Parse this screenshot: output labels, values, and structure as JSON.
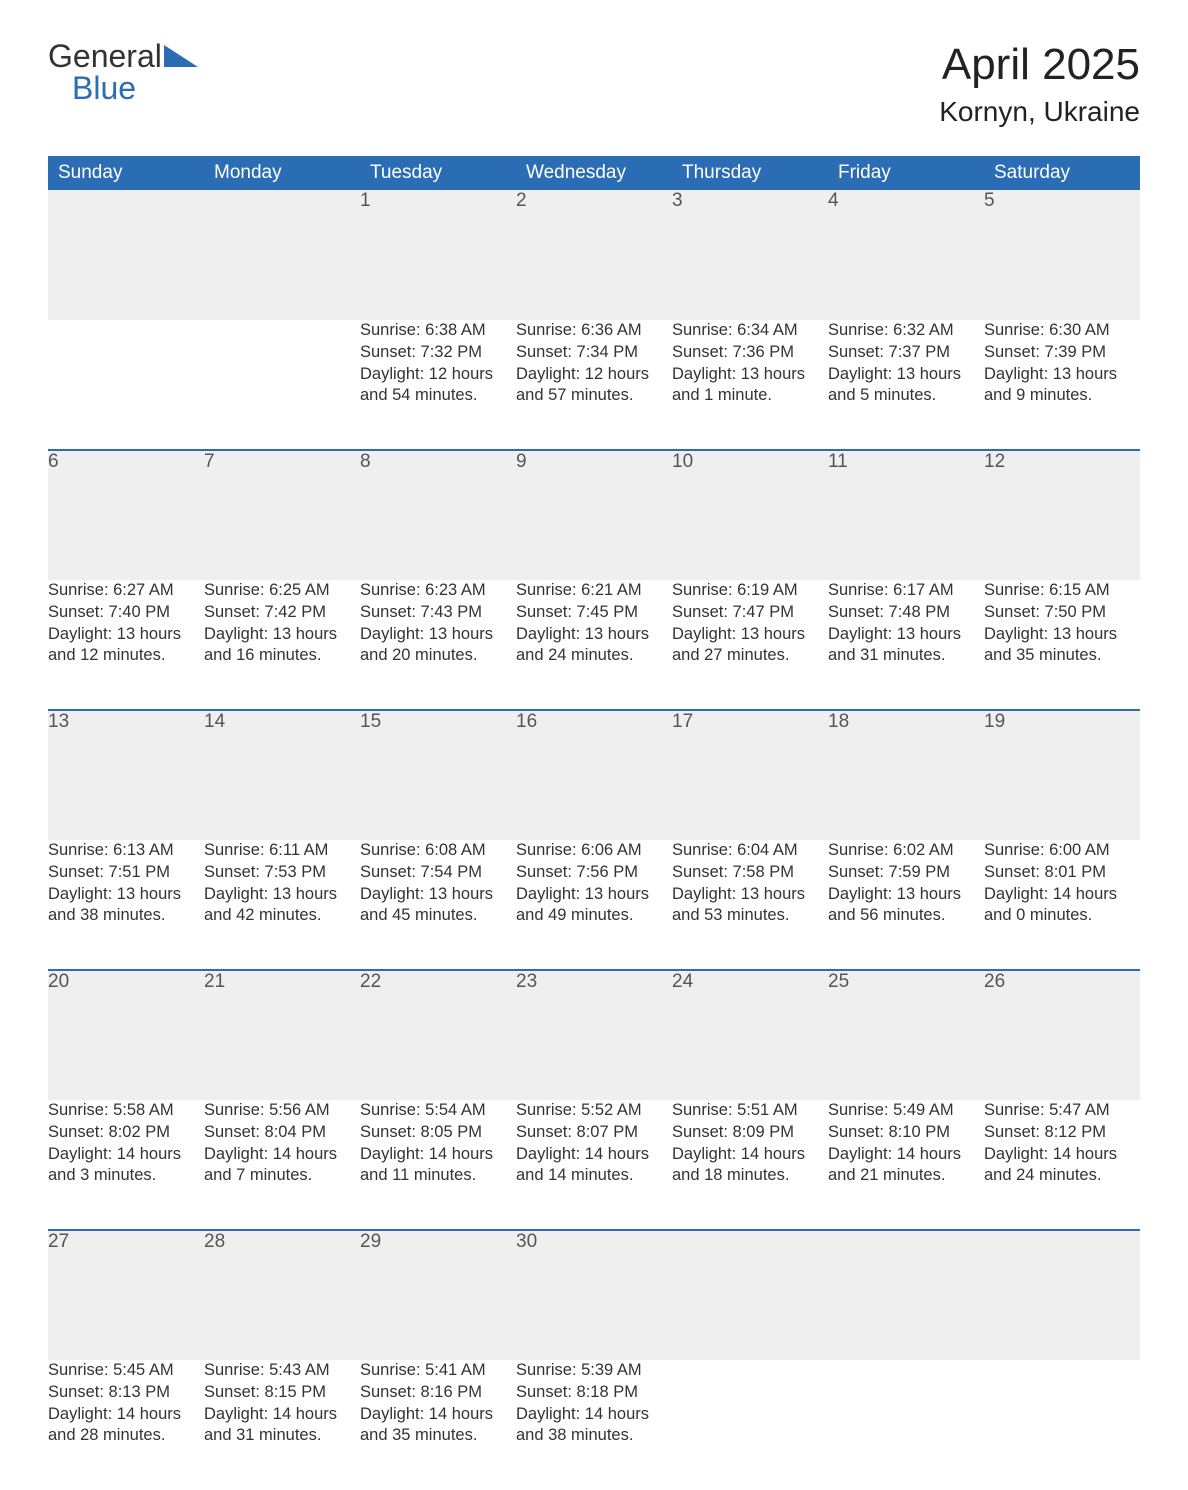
{
  "brand": {
    "line1": "General",
    "line2": "Blue"
  },
  "title": "April 2025",
  "location": "Kornyn, Ukraine",
  "weekday_headers": [
    "Sunday",
    "Monday",
    "Tuesday",
    "Wednesday",
    "Thursday",
    "Friday",
    "Saturday"
  ],
  "colors": {
    "header_bg": "#2a6db5",
    "header_text": "#ffffff",
    "daynum_bg": "#efefef",
    "row_border": "#2a6db5",
    "text": "#333333",
    "logo_accent": "#2a6db5",
    "background": "#ffffff"
  },
  "typography": {
    "month_title_fontsize": 44,
    "location_fontsize": 28,
    "header_fontsize": 19,
    "daynum_fontsize": 19,
    "body_fontsize": 16.5,
    "font_family": "Arial"
  },
  "weeks": [
    {
      "days": [
        {
          "date": "",
          "sunrise": "",
          "sunset": "",
          "daylight": ""
        },
        {
          "date": "",
          "sunrise": "",
          "sunset": "",
          "daylight": ""
        },
        {
          "date": "1",
          "sunrise": "Sunrise: 6:38 AM",
          "sunset": "Sunset: 7:32 PM",
          "daylight": "Daylight: 12 hours and 54 minutes."
        },
        {
          "date": "2",
          "sunrise": "Sunrise: 6:36 AM",
          "sunset": "Sunset: 7:34 PM",
          "daylight": "Daylight: 12 hours and 57 minutes."
        },
        {
          "date": "3",
          "sunrise": "Sunrise: 6:34 AM",
          "sunset": "Sunset: 7:36 PM",
          "daylight": "Daylight: 13 hours and 1 minute."
        },
        {
          "date": "4",
          "sunrise": "Sunrise: 6:32 AM",
          "sunset": "Sunset: 7:37 PM",
          "daylight": "Daylight: 13 hours and 5 minutes."
        },
        {
          "date": "5",
          "sunrise": "Sunrise: 6:30 AM",
          "sunset": "Sunset: 7:39 PM",
          "daylight": "Daylight: 13 hours and 9 minutes."
        }
      ]
    },
    {
      "days": [
        {
          "date": "6",
          "sunrise": "Sunrise: 6:27 AM",
          "sunset": "Sunset: 7:40 PM",
          "daylight": "Daylight: 13 hours and 12 minutes."
        },
        {
          "date": "7",
          "sunrise": "Sunrise: 6:25 AM",
          "sunset": "Sunset: 7:42 PM",
          "daylight": "Daylight: 13 hours and 16 minutes."
        },
        {
          "date": "8",
          "sunrise": "Sunrise: 6:23 AM",
          "sunset": "Sunset: 7:43 PM",
          "daylight": "Daylight: 13 hours and 20 minutes."
        },
        {
          "date": "9",
          "sunrise": "Sunrise: 6:21 AM",
          "sunset": "Sunset: 7:45 PM",
          "daylight": "Daylight: 13 hours and 24 minutes."
        },
        {
          "date": "10",
          "sunrise": "Sunrise: 6:19 AM",
          "sunset": "Sunset: 7:47 PM",
          "daylight": "Daylight: 13 hours and 27 minutes."
        },
        {
          "date": "11",
          "sunrise": "Sunrise: 6:17 AM",
          "sunset": "Sunset: 7:48 PM",
          "daylight": "Daylight: 13 hours and 31 minutes."
        },
        {
          "date": "12",
          "sunrise": "Sunrise: 6:15 AM",
          "sunset": "Sunset: 7:50 PM",
          "daylight": "Daylight: 13 hours and 35 minutes."
        }
      ]
    },
    {
      "days": [
        {
          "date": "13",
          "sunrise": "Sunrise: 6:13 AM",
          "sunset": "Sunset: 7:51 PM",
          "daylight": "Daylight: 13 hours and 38 minutes."
        },
        {
          "date": "14",
          "sunrise": "Sunrise: 6:11 AM",
          "sunset": "Sunset: 7:53 PM",
          "daylight": "Daylight: 13 hours and 42 minutes."
        },
        {
          "date": "15",
          "sunrise": "Sunrise: 6:08 AM",
          "sunset": "Sunset: 7:54 PM",
          "daylight": "Daylight: 13 hours and 45 minutes."
        },
        {
          "date": "16",
          "sunrise": "Sunrise: 6:06 AM",
          "sunset": "Sunset: 7:56 PM",
          "daylight": "Daylight: 13 hours and 49 minutes."
        },
        {
          "date": "17",
          "sunrise": "Sunrise: 6:04 AM",
          "sunset": "Sunset: 7:58 PM",
          "daylight": "Daylight: 13 hours and 53 minutes."
        },
        {
          "date": "18",
          "sunrise": "Sunrise: 6:02 AM",
          "sunset": "Sunset: 7:59 PM",
          "daylight": "Daylight: 13 hours and 56 minutes."
        },
        {
          "date": "19",
          "sunrise": "Sunrise: 6:00 AM",
          "sunset": "Sunset: 8:01 PM",
          "daylight": "Daylight: 14 hours and 0 minutes."
        }
      ]
    },
    {
      "days": [
        {
          "date": "20",
          "sunrise": "Sunrise: 5:58 AM",
          "sunset": "Sunset: 8:02 PM",
          "daylight": "Daylight: 14 hours and 3 minutes."
        },
        {
          "date": "21",
          "sunrise": "Sunrise: 5:56 AM",
          "sunset": "Sunset: 8:04 PM",
          "daylight": "Daylight: 14 hours and 7 minutes."
        },
        {
          "date": "22",
          "sunrise": "Sunrise: 5:54 AM",
          "sunset": "Sunset: 8:05 PM",
          "daylight": "Daylight: 14 hours and 11 minutes."
        },
        {
          "date": "23",
          "sunrise": "Sunrise: 5:52 AM",
          "sunset": "Sunset: 8:07 PM",
          "daylight": "Daylight: 14 hours and 14 minutes."
        },
        {
          "date": "24",
          "sunrise": "Sunrise: 5:51 AM",
          "sunset": "Sunset: 8:09 PM",
          "daylight": "Daylight: 14 hours and 18 minutes."
        },
        {
          "date": "25",
          "sunrise": "Sunrise: 5:49 AM",
          "sunset": "Sunset: 8:10 PM",
          "daylight": "Daylight: 14 hours and 21 minutes."
        },
        {
          "date": "26",
          "sunrise": "Sunrise: 5:47 AM",
          "sunset": "Sunset: 8:12 PM",
          "daylight": "Daylight: 14 hours and 24 minutes."
        }
      ]
    },
    {
      "days": [
        {
          "date": "27",
          "sunrise": "Sunrise: 5:45 AM",
          "sunset": "Sunset: 8:13 PM",
          "daylight": "Daylight: 14 hours and 28 minutes."
        },
        {
          "date": "28",
          "sunrise": "Sunrise: 5:43 AM",
          "sunset": "Sunset: 8:15 PM",
          "daylight": "Daylight: 14 hours and 31 minutes."
        },
        {
          "date": "29",
          "sunrise": "Sunrise: 5:41 AM",
          "sunset": "Sunset: 8:16 PM",
          "daylight": "Daylight: 14 hours and 35 minutes."
        },
        {
          "date": "30",
          "sunrise": "Sunrise: 5:39 AM",
          "sunset": "Sunset: 8:18 PM",
          "daylight": "Daylight: 14 hours and 38 minutes."
        },
        {
          "date": "",
          "sunrise": "",
          "sunset": "",
          "daylight": ""
        },
        {
          "date": "",
          "sunrise": "",
          "sunset": "",
          "daylight": ""
        },
        {
          "date": "",
          "sunrise": "",
          "sunset": "",
          "daylight": ""
        }
      ]
    }
  ]
}
